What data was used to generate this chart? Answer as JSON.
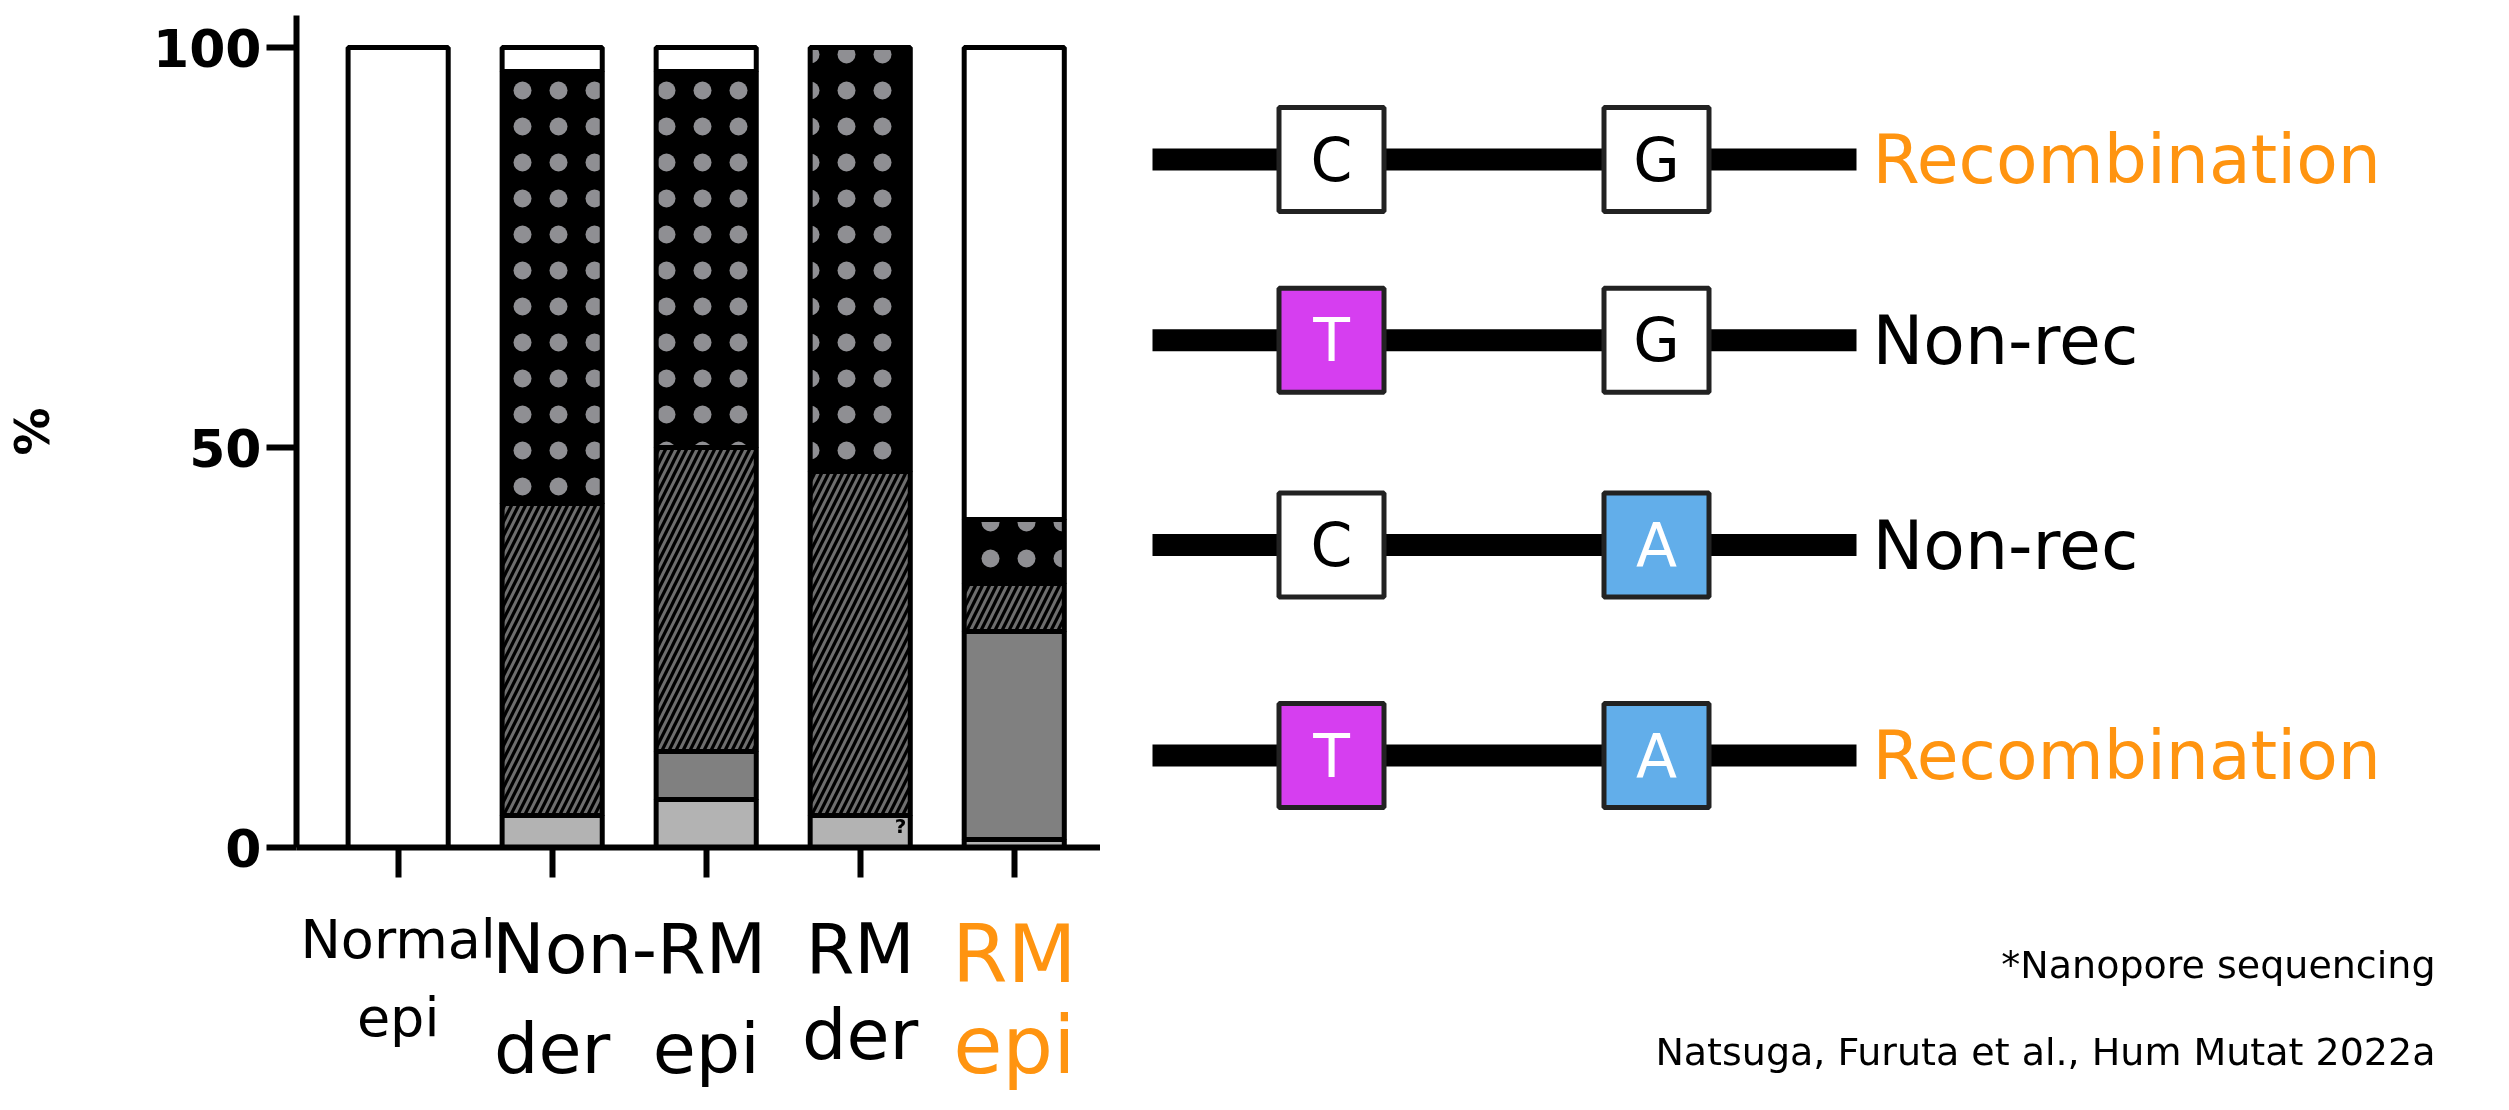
{
  "chart_data": {
    "type": "bar",
    "stacked": true,
    "ylabel": "%",
    "ylim": [
      0,
      104
    ],
    "yticks": [
      0,
      50,
      100
    ],
    "grid": false,
    "legend": "right",
    "categories": [
      "Normal\nepi",
      "der",
      "epi",
      "RM\nder",
      "RM\nepi"
    ],
    "series": [
      {
        "color": "#b3b3b3",
        "values": [
          0,
          4,
          6,
          4,
          1
        ]
      },
      {
        "name": "Recombination",
        "color": "#808080",
        "values": [
          0,
          0,
          6,
          0,
          26
        ]
      },
      {
        "name": "Non-rec",
        "color": "#000000",
        "values": [
          0,
          39,
          38,
          43,
          6
        ]
      },
      {
        "name": "Non-rec",
        "color": "#000000",
        "values": [
          0,
          54,
          47,
          53,
          8
        ]
      },
      {
        "name": "Recombination",
        "color": "#ffffff",
        "values": [
          100,
          3,
          3,
          0,
          59
        ]
      }
    ],
    "annotations": [
      "C",
      "G",
      "T",
      "G",
      "C",
      "A",
      "T",
      "A",
      "Non-RM",
      "?",
      "*Nanopore sequencing",
      "Natsuga, Furuta et al., Hum Mutat 2022a"
    ]
  }
}
